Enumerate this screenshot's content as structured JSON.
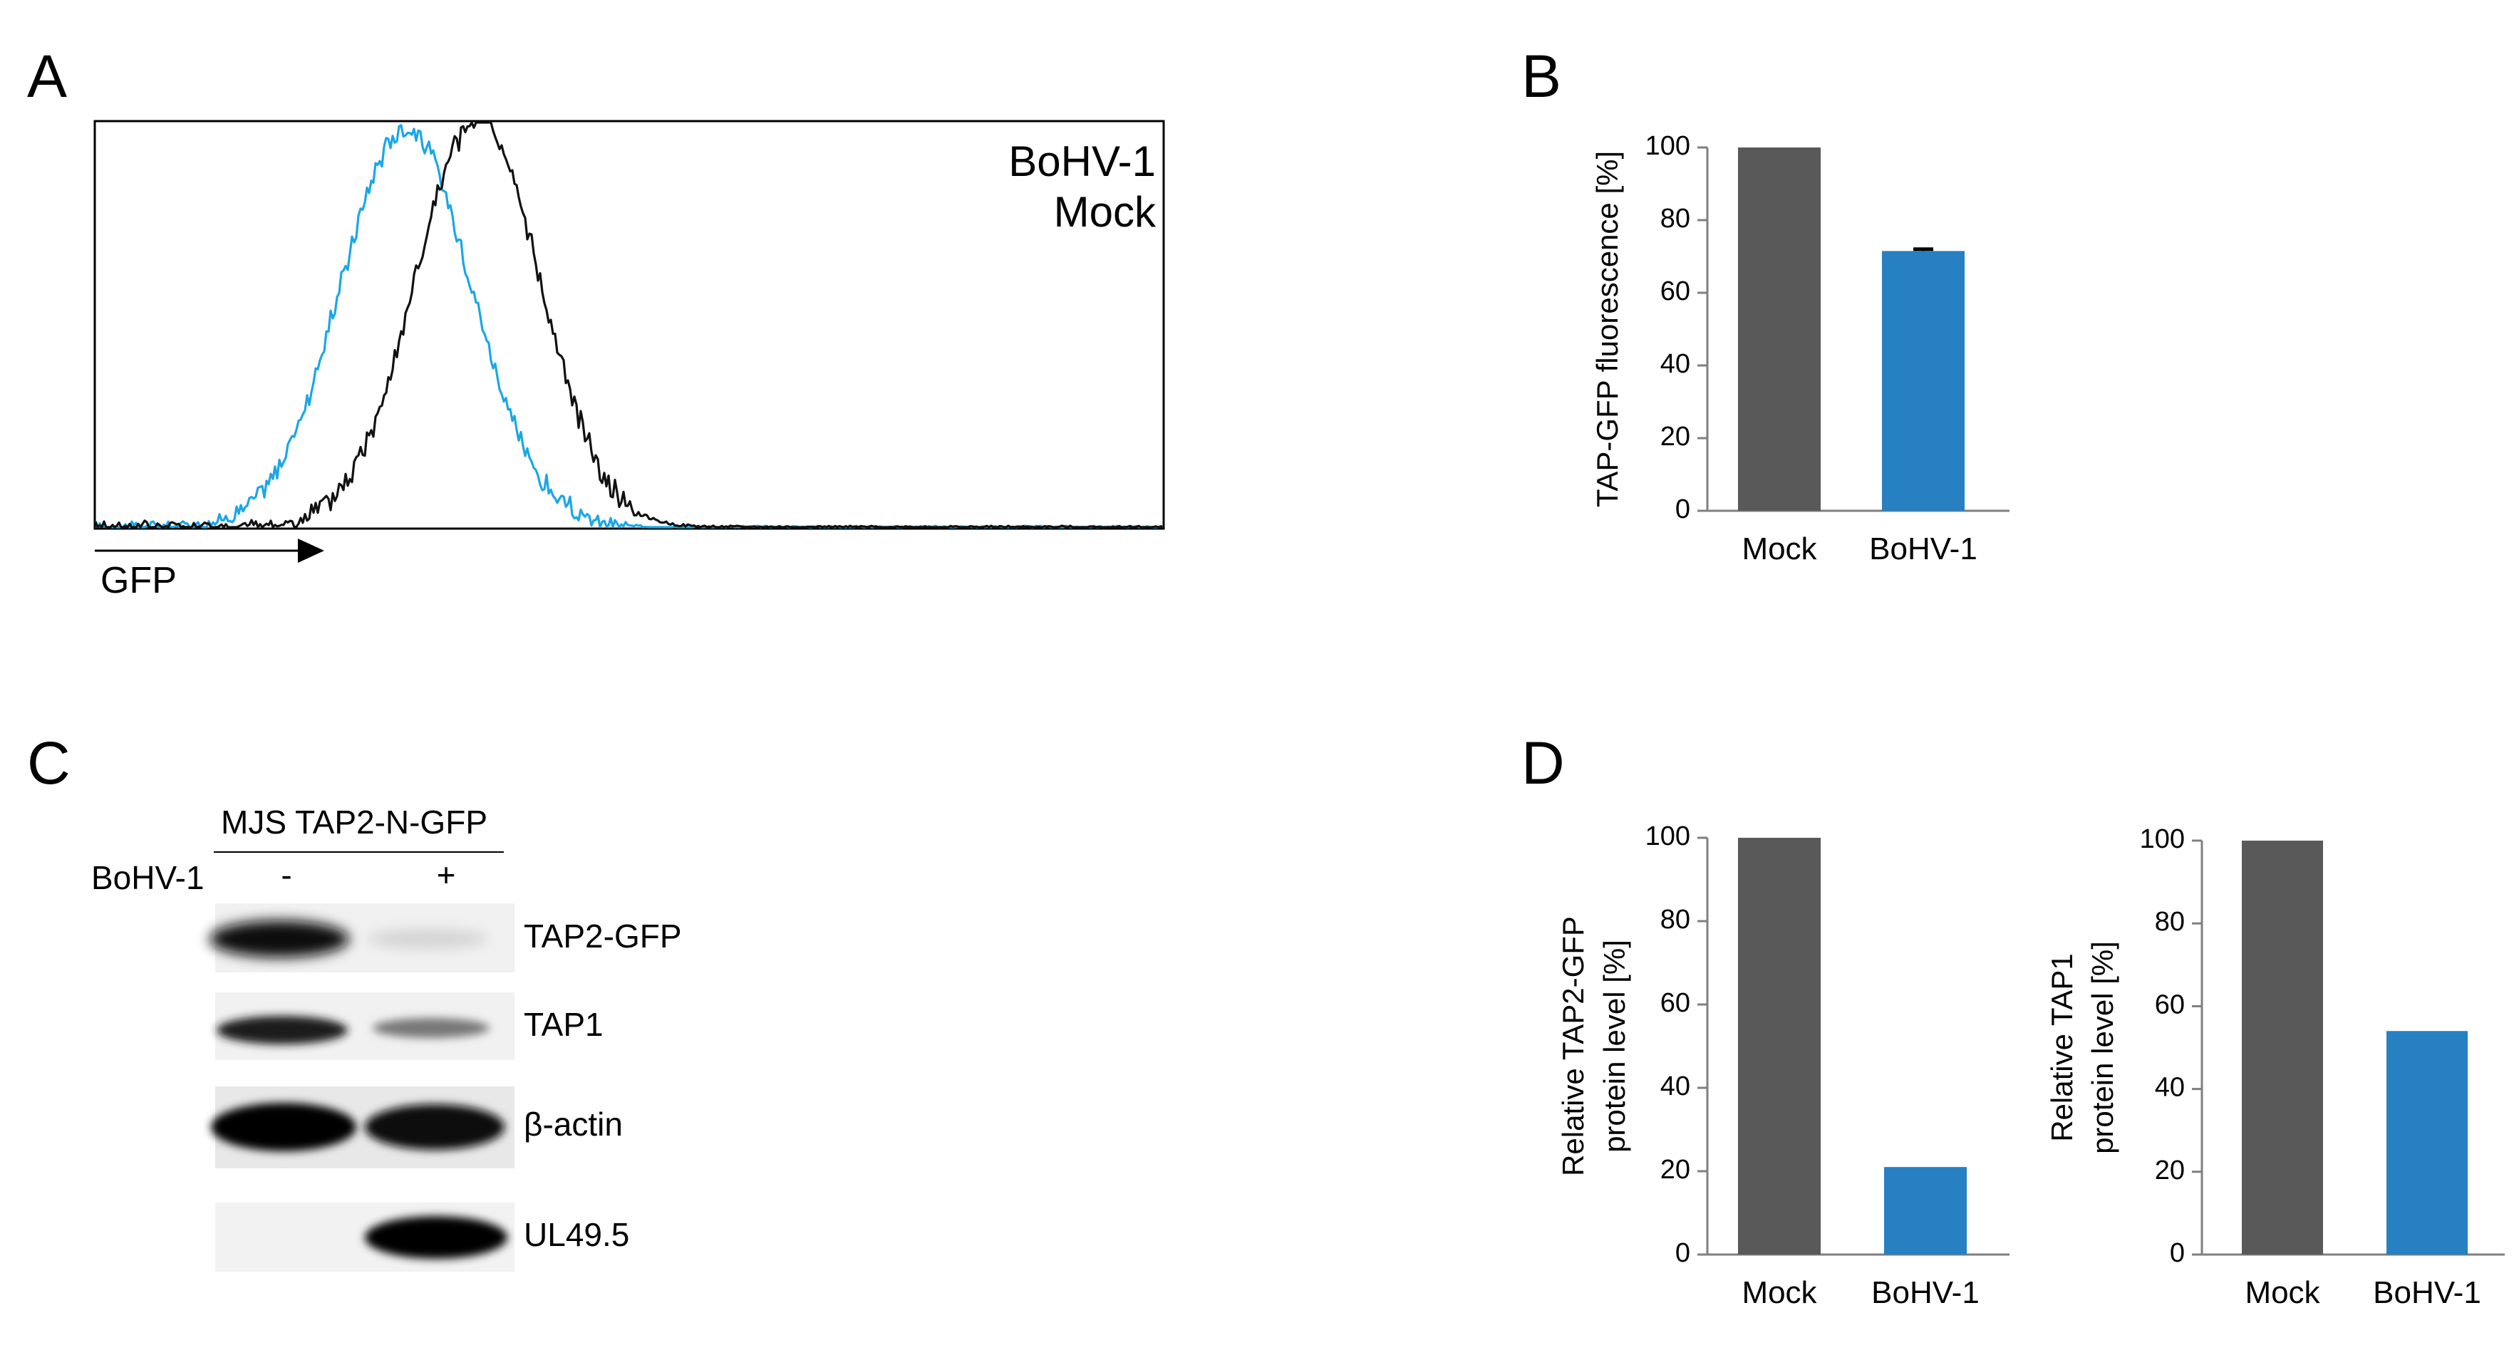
{
  "panels": {
    "a": {
      "letter": "A"
    },
    "b": {
      "letter": "B"
    },
    "c": {
      "letter": "C"
    },
    "d": {
      "letter": "D"
    }
  },
  "histogram": {
    "legend": [
      {
        "label": "BoHV-1",
        "color": "#6a63e8"
      },
      {
        "label": "Mock",
        "color": "#000000"
      }
    ],
    "axis_label": "GFP",
    "bohv_color": "#1aa7e6",
    "mock_color": "#111111"
  },
  "blot": {
    "cell_line": "MJS TAP2-N-GFP",
    "condition_label": "BoHV-1",
    "lane_minus": "-",
    "lane_plus": "+",
    "bands": [
      {
        "label": "TAP2-GFP"
      },
      {
        "label": "TAP1"
      },
      {
        "label": "β-actin"
      },
      {
        "label": "UL49.5"
      }
    ]
  },
  "chart_data": [
    {
      "type": "line",
      "title": "",
      "xlabel": "GFP",
      "ylabel": "",
      "series": [
        {
          "name": "BoHV-1",
          "color": "#1aa7e6"
        },
        {
          "name": "Mock",
          "color": "#111111"
        }
      ]
    },
    {
      "type": "bar",
      "categories": [
        "Mock",
        "BoHV-1"
      ],
      "values": [
        100,
        71.5
      ],
      "errors": [
        0,
        0.5
      ],
      "colors": [
        "#595959",
        "#2680c2"
      ],
      "title": "",
      "xlabel": "",
      "ylabel": "TAP-GFP fluorescence [%]",
      "ylim": [
        0,
        100
      ],
      "yticks": [
        "0",
        "20",
        "40",
        "60",
        "80",
        "100"
      ]
    },
    {
      "type": "bar",
      "categories": [
        "Mock",
        "BoHV-1"
      ],
      "values": [
        100,
        21
      ],
      "colors": [
        "#595959",
        "#2680c2"
      ],
      "title": "",
      "xlabel": "",
      "ylabel_lines": [
        "Relative TAP2-GFP",
        "protein  level [%]"
      ],
      "ylim": [
        0,
        100
      ],
      "yticks": [
        "0",
        "20",
        "40",
        "60",
        "80",
        "100"
      ]
    },
    {
      "type": "bar",
      "categories": [
        "Mock",
        "BoHV-1"
      ],
      "values": [
        100,
        54
      ],
      "colors": [
        "#595959",
        "#2680c2"
      ],
      "title": "",
      "xlabel": "",
      "ylabel_lines": [
        "Relative TAP1",
        "protein level [%]"
      ],
      "ylim": [
        0,
        100
      ],
      "yticks": [
        "0",
        "20",
        "40",
        "60",
        "80",
        "100"
      ]
    }
  ]
}
